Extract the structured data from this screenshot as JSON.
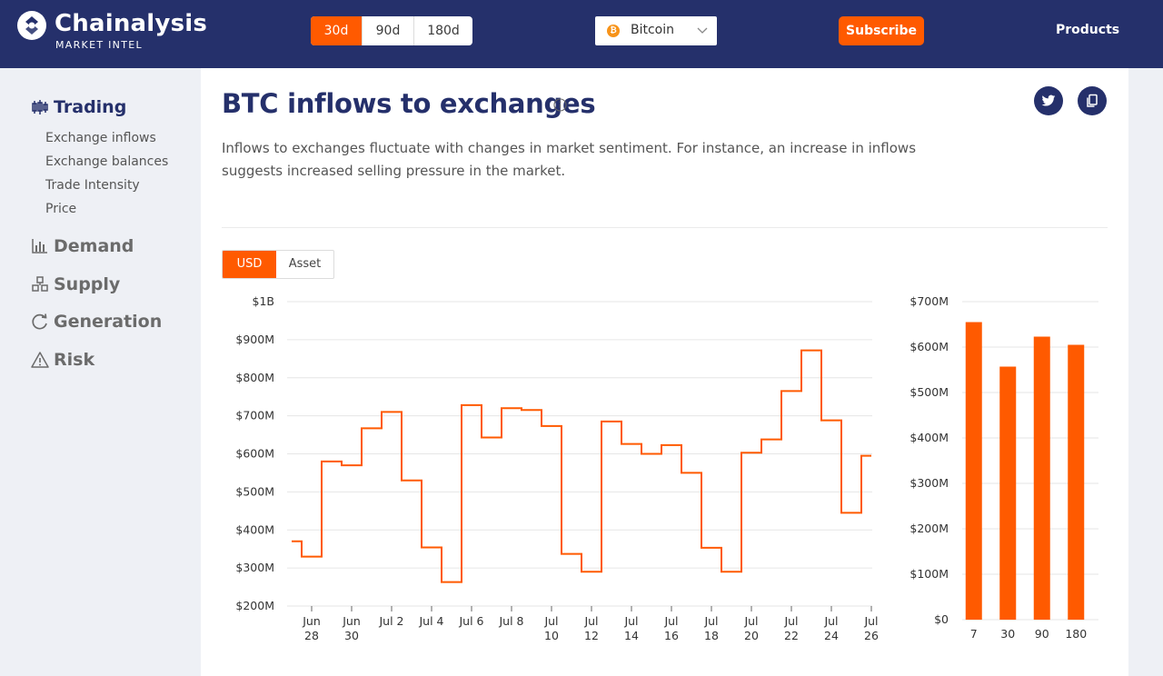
{
  "header": {
    "logo_name": "Chainalysis",
    "logo_sub": "MARKET INTEL",
    "range_options": [
      {
        "label": "30d",
        "active": true
      },
      {
        "label": "90d",
        "active": false
      },
      {
        "label": "180d",
        "active": false
      }
    ],
    "asset": {
      "label": "Bitcoin",
      "icon": "bitcoin-icon"
    },
    "subscribe_label": "Subscribe",
    "products_label": "Products"
  },
  "sidebar": {
    "sections": [
      {
        "label": "Trading",
        "icon": "candlestick-icon",
        "active": true,
        "items": [
          "Exchange inflows",
          "Exchange balances",
          "Trade Intensity",
          "Price"
        ]
      },
      {
        "label": "Demand",
        "icon": "bar-chart-icon",
        "active": false
      },
      {
        "label": "Supply",
        "icon": "boxes-icon",
        "active": false
      },
      {
        "label": "Generation",
        "icon": "refresh-icon",
        "active": false
      },
      {
        "label": "Risk",
        "icon": "warning-icon",
        "active": false
      }
    ]
  },
  "main": {
    "title": "BTC inflows to exchanges",
    "description": "Inflows to exchanges fluctuate with changes in market sentiment. For instance, an increase in inflows suggests increased selling pressure in the market.",
    "unit_options": [
      {
        "label": "USD",
        "active": true
      },
      {
        "label": "Asset",
        "active": false
      }
    ]
  },
  "colors": {
    "navy": "#25306b",
    "accent": "#ff5a00"
  },
  "chart_data": [
    {
      "type": "line",
      "step": true,
      "ylim": [
        200,
        1000
      ],
      "y_unit": "$M",
      "y_ticks": [
        "$200M",
        "$300M",
        "$400M",
        "$500M",
        "$600M",
        "$700M",
        "$800M",
        "$900M",
        "$1B"
      ],
      "x_ticks": [
        [
          "Jun",
          "28"
        ],
        [
          "Jun",
          "30"
        ],
        [
          "Jul 2"
        ],
        [
          "Jul 4"
        ],
        [
          "Jul 6"
        ],
        [
          "Jul 8"
        ],
        [
          "Jul",
          "10"
        ],
        [
          "Jul",
          "12"
        ],
        [
          "Jul",
          "14"
        ],
        [
          "Jul",
          "16"
        ],
        [
          "Jul",
          "18"
        ],
        [
          "Jul",
          "20"
        ],
        [
          "Jul",
          "22"
        ],
        [
          "Jul",
          "24"
        ],
        [
          "Jul",
          "26"
        ]
      ],
      "x_start": "Jun 27",
      "values": [
        370,
        330,
        580,
        570,
        667,
        710,
        530,
        354,
        263,
        728,
        643,
        720,
        715,
        673,
        337,
        290,
        685,
        626,
        600,
        623,
        550,
        353,
        290,
        603,
        638,
        765,
        872,
        688,
        445,
        595
      ],
      "grid": true
    },
    {
      "type": "bar",
      "categories": [
        "7",
        "30",
        "90",
        "180"
      ],
      "values": [
        655,
        557,
        623,
        605
      ],
      "ylim": [
        0,
        700
      ],
      "y_unit": "$M",
      "y_ticks": [
        "$0",
        "$100M",
        "$200M",
        "$300M",
        "$400M",
        "$500M",
        "$600M",
        "$700M"
      ],
      "grid": true
    }
  ]
}
